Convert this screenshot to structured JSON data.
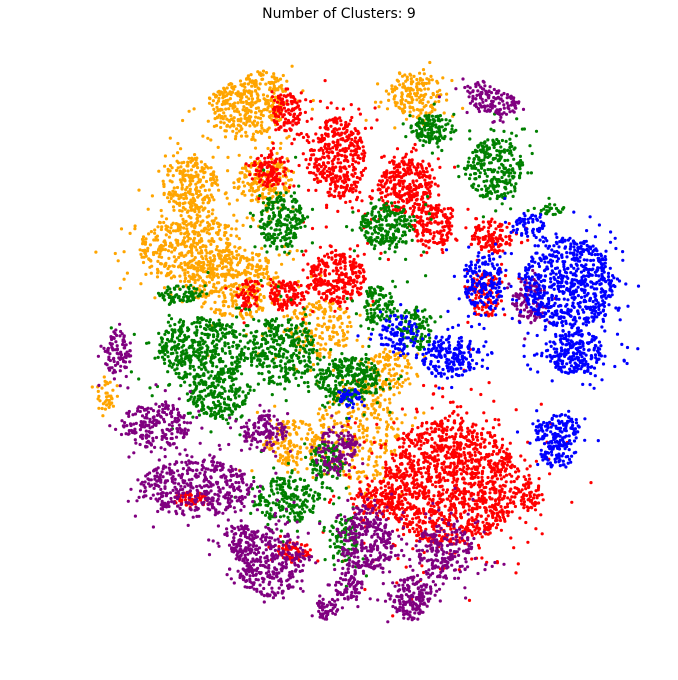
{
  "chart_data": {
    "type": "scatter",
    "title": "Number of Clusters: 9",
    "axes_visible": false,
    "grid": false,
    "legend": "none",
    "colors": {
      "orange": "#FFA500",
      "red": "#FF0000",
      "green": "#008000",
      "purple": "#800080",
      "blue": "#0000FF"
    },
    "regions": [
      {
        "color": "orange",
        "x": 0.3,
        "y": 0.92,
        "rx": 0.07,
        "ry": 0.07,
        "n": 500
      },
      {
        "color": "orange",
        "x": 0.33,
        "y": 0.78,
        "rx": 0.05,
        "ry": 0.04,
        "n": 200
      },
      {
        "color": "orange",
        "x": 0.2,
        "y": 0.77,
        "rx": 0.05,
        "ry": 0.05,
        "n": 250
      },
      {
        "color": "orange",
        "x": 0.2,
        "y": 0.66,
        "rx": 0.09,
        "ry": 0.06,
        "n": 450
      },
      {
        "color": "orange",
        "x": 0.28,
        "y": 0.6,
        "rx": 0.08,
        "ry": 0.06,
        "n": 350
      },
      {
        "color": "orange",
        "x": 0.43,
        "y": 0.52,
        "rx": 0.06,
        "ry": 0.05,
        "n": 180
      },
      {
        "color": "orange",
        "x": 0.5,
        "y": 0.34,
        "rx": 0.07,
        "ry": 0.09,
        "n": 320
      },
      {
        "color": "orange",
        "x": 0.38,
        "y": 0.32,
        "rx": 0.05,
        "ry": 0.04,
        "n": 150
      },
      {
        "color": "orange",
        "x": 0.6,
        "y": 0.93,
        "rx": 0.045,
        "ry": 0.04,
        "n": 180
      },
      {
        "color": "orange",
        "x": 0.55,
        "y": 0.45,
        "rx": 0.04,
        "ry": 0.04,
        "n": 100
      },
      {
        "color": "orange",
        "x": 0.05,
        "y": 0.4,
        "rx": 0.02,
        "ry": 0.03,
        "n": 40
      },
      {
        "color": "red",
        "x": 0.66,
        "y": 0.25,
        "rx": 0.12,
        "ry": 0.11,
        "n": 1400
      },
      {
        "color": "red",
        "x": 0.46,
        "y": 0.82,
        "rx": 0.05,
        "ry": 0.07,
        "n": 400
      },
      {
        "color": "red",
        "x": 0.37,
        "y": 0.9,
        "rx": 0.025,
        "ry": 0.035,
        "n": 120
      },
      {
        "color": "red",
        "x": 0.58,
        "y": 0.77,
        "rx": 0.05,
        "ry": 0.05,
        "n": 320
      },
      {
        "color": "red",
        "x": 0.63,
        "y": 0.7,
        "rx": 0.035,
        "ry": 0.04,
        "n": 160
      },
      {
        "color": "red",
        "x": 0.46,
        "y": 0.61,
        "rx": 0.05,
        "ry": 0.045,
        "n": 300
      },
      {
        "color": "red",
        "x": 0.37,
        "y": 0.58,
        "rx": 0.03,
        "ry": 0.025,
        "n": 120
      },
      {
        "color": "red",
        "x": 0.3,
        "y": 0.58,
        "rx": 0.02,
        "ry": 0.025,
        "n": 60
      },
      {
        "color": "red",
        "x": 0.34,
        "y": 0.8,
        "rx": 0.03,
        "ry": 0.03,
        "n": 110
      },
      {
        "color": "red",
        "x": 0.73,
        "y": 0.68,
        "rx": 0.04,
        "ry": 0.03,
        "n": 130
      },
      {
        "color": "red",
        "x": 0.72,
        "y": 0.58,
        "rx": 0.03,
        "ry": 0.04,
        "n": 110
      },
      {
        "color": "red",
        "x": 0.2,
        "y": 0.22,
        "rx": 0.03,
        "ry": 0.015,
        "n": 60
      },
      {
        "color": "red",
        "x": 0.38,
        "y": 0.13,
        "rx": 0.03,
        "ry": 0.015,
        "n": 70
      },
      {
        "color": "red",
        "x": 0.53,
        "y": 0.22,
        "rx": 0.04,
        "ry": 0.03,
        "n": 120
      },
      {
        "color": "red",
        "x": 0.8,
        "y": 0.23,
        "rx": 0.02,
        "ry": 0.03,
        "n": 60
      },
      {
        "color": "green",
        "x": 0.74,
        "y": 0.8,
        "rx": 0.05,
        "ry": 0.055,
        "n": 280
      },
      {
        "color": "green",
        "x": 0.63,
        "y": 0.87,
        "rx": 0.04,
        "ry": 0.025,
        "n": 140
      },
      {
        "color": "green",
        "x": 0.22,
        "y": 0.48,
        "rx": 0.08,
        "ry": 0.06,
        "n": 450
      },
      {
        "color": "green",
        "x": 0.36,
        "y": 0.48,
        "rx": 0.06,
        "ry": 0.06,
        "n": 320
      },
      {
        "color": "green",
        "x": 0.48,
        "y": 0.43,
        "rx": 0.06,
        "ry": 0.04,
        "n": 300
      },
      {
        "color": "green",
        "x": 0.36,
        "y": 0.71,
        "rx": 0.04,
        "ry": 0.05,
        "n": 220
      },
      {
        "color": "green",
        "x": 0.55,
        "y": 0.7,
        "rx": 0.05,
        "ry": 0.04,
        "n": 220
      },
      {
        "color": "green",
        "x": 0.53,
        "y": 0.56,
        "rx": 0.03,
        "ry": 0.035,
        "n": 110
      },
      {
        "color": "green",
        "x": 0.25,
        "y": 0.4,
        "rx": 0.05,
        "ry": 0.04,
        "n": 200
      },
      {
        "color": "green",
        "x": 0.37,
        "y": 0.22,
        "rx": 0.06,
        "ry": 0.04,
        "n": 220
      },
      {
        "color": "green",
        "x": 0.44,
        "y": 0.28,
        "rx": 0.03,
        "ry": 0.04,
        "n": 110
      },
      {
        "color": "green",
        "x": 0.47,
        "y": 0.15,
        "rx": 0.025,
        "ry": 0.04,
        "n": 90
      },
      {
        "color": "green",
        "x": 0.6,
        "y": 0.52,
        "rx": 0.03,
        "ry": 0.04,
        "n": 100
      },
      {
        "color": "green",
        "x": 0.18,
        "y": 0.58,
        "rx": 0.04,
        "ry": 0.015,
        "n": 80
      },
      {
        "color": "green",
        "x": 0.84,
        "y": 0.73,
        "rx": 0.02,
        "ry": 0.01,
        "n": 30
      },
      {
        "color": "purple",
        "x": 0.21,
        "y": 0.24,
        "rx": 0.1,
        "ry": 0.05,
        "n": 450
      },
      {
        "color": "purple",
        "x": 0.14,
        "y": 0.35,
        "rx": 0.06,
        "ry": 0.04,
        "n": 220
      },
      {
        "color": "purple",
        "x": 0.34,
        "y": 0.11,
        "rx": 0.06,
        "ry": 0.06,
        "n": 350
      },
      {
        "color": "purple",
        "x": 0.51,
        "y": 0.15,
        "rx": 0.05,
        "ry": 0.06,
        "n": 300
      },
      {
        "color": "purple",
        "x": 0.59,
        "y": 0.05,
        "rx": 0.04,
        "ry": 0.035,
        "n": 180
      },
      {
        "color": "purple",
        "x": 0.65,
        "y": 0.13,
        "rx": 0.05,
        "ry": 0.05,
        "n": 220
      },
      {
        "color": "purple",
        "x": 0.75,
        "y": 0.93,
        "rx": 0.06,
        "ry": 0.035,
        "n": 250
      },
      {
        "color": "purple",
        "x": 0.07,
        "y": 0.48,
        "rx": 0.025,
        "ry": 0.04,
        "n": 100
      },
      {
        "color": "purple",
        "x": 0.33,
        "y": 0.34,
        "rx": 0.04,
        "ry": 0.03,
        "n": 130
      },
      {
        "color": "purple",
        "x": 0.46,
        "y": 0.31,
        "rx": 0.035,
        "ry": 0.04,
        "n": 130
      },
      {
        "color": "purple",
        "x": 0.8,
        "y": 0.57,
        "rx": 0.03,
        "ry": 0.04,
        "n": 110
      },
      {
        "color": "purple",
        "x": 0.48,
        "y": 0.07,
        "rx": 0.025,
        "ry": 0.025,
        "n": 70
      },
      {
        "color": "purple",
        "x": 0.44,
        "y": 0.03,
        "rx": 0.02,
        "ry": 0.02,
        "n": 50
      },
      {
        "color": "purple",
        "x": 0.29,
        "y": 0.15,
        "rx": 0.03,
        "ry": 0.025,
        "n": 80
      },
      {
        "color": "blue",
        "x": 0.87,
        "y": 0.6,
        "rx": 0.08,
        "ry": 0.08,
        "n": 700
      },
      {
        "color": "blue",
        "x": 0.88,
        "y": 0.48,
        "rx": 0.05,
        "ry": 0.04,
        "n": 250
      },
      {
        "color": "blue",
        "x": 0.85,
        "y": 0.34,
        "rx": 0.04,
        "ry": 0.03,
        "n": 130
      },
      {
        "color": "blue",
        "x": 0.72,
        "y": 0.6,
        "rx": 0.035,
        "ry": 0.05,
        "n": 180
      },
      {
        "color": "blue",
        "x": 0.66,
        "y": 0.47,
        "rx": 0.05,
        "ry": 0.04,
        "n": 200
      },
      {
        "color": "blue",
        "x": 0.57,
        "y": 0.51,
        "rx": 0.035,
        "ry": 0.035,
        "n": 100
      },
      {
        "color": "blue",
        "x": 0.8,
        "y": 0.7,
        "rx": 0.03,
        "ry": 0.02,
        "n": 60
      },
      {
        "color": "blue",
        "x": 0.85,
        "y": 0.3,
        "rx": 0.03,
        "ry": 0.025,
        "n": 80
      },
      {
        "color": "blue",
        "x": 0.48,
        "y": 0.4,
        "rx": 0.02,
        "ry": 0.02,
        "n": 40
      }
    ]
  }
}
